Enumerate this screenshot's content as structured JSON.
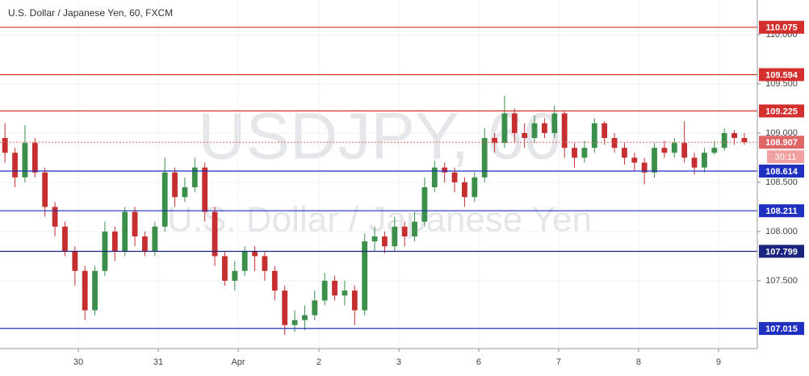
{
  "chart_data": {
    "type": "candlestick",
    "title": "U.S. Dollar / Japanese Yen, 60, FXCM",
    "watermark": "USDJPY, 60",
    "watermark_subtitle": "U.S. Dollar / Japanese Yen",
    "x": [
      0,
      1,
      2,
      3,
      4,
      5,
      6,
      7,
      8,
      9,
      10,
      11,
      12,
      13,
      14,
      15,
      16,
      17,
      18,
      19,
      20,
      21,
      22,
      23,
      24,
      25,
      26,
      27,
      28,
      29,
      30,
      31,
      32,
      33,
      34,
      35,
      36,
      37,
      38,
      39,
      40,
      41,
      42,
      43,
      44,
      45,
      46,
      47,
      48,
      49,
      50,
      51,
      52,
      53,
      54,
      55,
      56,
      57,
      58,
      59,
      60,
      61,
      62,
      63,
      64,
      65,
      66,
      67,
      68,
      69,
      70,
      71,
      72,
      73,
      74
    ],
    "series": [
      {
        "name": "USDJPY",
        "up_color": "#3b8f4a",
        "down_color": "#c62f2f",
        "open": [
          108.95,
          108.8,
          108.55,
          108.9,
          108.6,
          108.25,
          108.05,
          107.8,
          107.6,
          107.2,
          107.6,
          108.0,
          107.8,
          108.2,
          107.95,
          107.8,
          108.05,
          108.6,
          108.35,
          108.45,
          108.65,
          108.2,
          107.75,
          107.5,
          107.6,
          107.8,
          107.75,
          107.6,
          107.4,
          107.05,
          107.1,
          107.15,
          107.3,
          107.5,
          107.35,
          107.4,
          107.2,
          107.9,
          107.95,
          107.85,
          108.05,
          107.95,
          108.1,
          108.45,
          108.65,
          108.6,
          108.5,
          108.35,
          108.55,
          108.95,
          108.9,
          109.2,
          109.0,
          108.95,
          109.1,
          109.0,
          109.2,
          108.85,
          108.75,
          108.85,
          109.1,
          108.95,
          108.85,
          108.75,
          108.7,
          108.6,
          108.85,
          108.8,
          108.9,
          108.75,
          108.65,
          108.8,
          108.85,
          109.0,
          108.95
        ],
        "high": [
          109.1,
          108.85,
          109.08,
          108.95,
          108.65,
          108.3,
          108.1,
          107.85,
          107.65,
          107.65,
          108.1,
          108.05,
          108.25,
          108.25,
          108.0,
          108.1,
          108.75,
          108.65,
          108.55,
          108.75,
          108.7,
          108.25,
          107.8,
          107.7,
          107.85,
          107.85,
          107.8,
          107.65,
          107.45,
          107.2,
          107.25,
          107.4,
          107.58,
          107.55,
          107.5,
          107.45,
          107.98,
          108.05,
          108.0,
          108.15,
          108.1,
          108.2,
          108.55,
          108.72,
          108.7,
          108.65,
          108.55,
          108.6,
          109.05,
          109.0,
          109.38,
          109.25,
          109.1,
          109.18,
          109.15,
          109.28,
          109.22,
          108.9,
          108.92,
          109.15,
          109.12,
          109.0,
          108.9,
          108.8,
          108.75,
          108.9,
          108.92,
          108.95,
          109.12,
          108.8,
          108.85,
          108.92,
          109.05,
          109.03,
          109.0
        ],
        "low": [
          108.7,
          108.45,
          108.5,
          108.55,
          108.15,
          107.95,
          107.75,
          107.45,
          107.1,
          107.15,
          107.55,
          107.7,
          107.75,
          107.85,
          107.75,
          107.75,
          108.0,
          108.25,
          108.3,
          108.4,
          108.1,
          107.65,
          107.45,
          107.4,
          107.55,
          107.6,
          107.5,
          107.3,
          106.95,
          106.98,
          107.0,
          107.1,
          107.25,
          107.3,
          107.25,
          107.05,
          107.15,
          107.8,
          107.78,
          107.8,
          107.85,
          107.9,
          108.05,
          108.4,
          108.5,
          108.4,
          108.25,
          108.3,
          108.5,
          108.8,
          108.85,
          108.9,
          108.85,
          108.9,
          108.95,
          108.95,
          108.75,
          108.65,
          108.7,
          108.8,
          108.88,
          108.8,
          108.68,
          108.62,
          108.48,
          108.55,
          108.75,
          108.75,
          108.7,
          108.58,
          108.6,
          108.78,
          108.82,
          108.88,
          108.88
        ],
        "close": [
          108.8,
          108.55,
          108.9,
          108.6,
          108.25,
          108.05,
          107.8,
          107.6,
          107.2,
          107.6,
          108.0,
          107.8,
          108.2,
          107.95,
          107.8,
          108.05,
          108.6,
          108.35,
          108.45,
          108.65,
          108.2,
          107.75,
          107.5,
          107.6,
          107.8,
          107.75,
          107.6,
          107.4,
          107.05,
          107.1,
          107.15,
          107.3,
          107.5,
          107.35,
          107.4,
          107.2,
          107.9,
          107.95,
          107.85,
          108.05,
          107.95,
          108.1,
          108.45,
          108.65,
          108.6,
          108.5,
          108.35,
          108.55,
          108.95,
          108.9,
          109.2,
          109.0,
          108.95,
          109.1,
          109.0,
          109.2,
          108.85,
          108.75,
          108.85,
          109.1,
          108.95,
          108.85,
          108.75,
          108.7,
          108.6,
          108.85,
          108.8,
          108.9,
          108.75,
          108.65,
          108.8,
          108.85,
          109.0,
          108.95,
          108.907
        ]
      }
    ],
    "xlim": [
      -0.5,
      75.3
    ],
    "xticks": [
      {
        "value": 7.34,
        "label": "30"
      },
      {
        "value": 15.34,
        "label": "31"
      },
      {
        "value": 23.34,
        "label": "Apr"
      },
      {
        "value": 31.42,
        "label": "2"
      },
      {
        "value": 39.42,
        "label": "3"
      },
      {
        "value": 47.42,
        "label": "6"
      },
      {
        "value": 55.42,
        "label": "7"
      },
      {
        "value": 63.42,
        "label": "8"
      },
      {
        "value": 71.42,
        "label": "9"
      }
    ],
    "ylim": [
      106.811,
      110.352
    ],
    "yticks": [
      {
        "value": 107.5,
        "label": "107.500"
      },
      {
        "value": 108,
        "label": "108.000"
      },
      {
        "value": 108.5,
        "label": "108.500"
      },
      {
        "value": 109,
        "label": "109.000"
      },
      {
        "value": 109.5,
        "label": "109.500"
      },
      {
        "value": 110,
        "label": "110.000"
      }
    ],
    "grid": true,
    "levels": [
      {
        "value": 110.075,
        "color": "#d32f2f"
      },
      {
        "value": 109.594,
        "color": "#d32f2f"
      },
      {
        "value": 109.225,
        "color": "#d32f2f"
      },
      {
        "value": 108.614,
        "color": "#1f2fbf"
      },
      {
        "value": 108.211,
        "color": "#1f2fbf"
      },
      {
        "value": 107.799,
        "color": "#1a237e"
      },
      {
        "value": 107.015,
        "color": "#1f2fbf"
      }
    ],
    "last_price": 108.907,
    "last_price_color": "#e06666",
    "countdown": "30:11",
    "countdown_color": "#f0a0a0"
  }
}
